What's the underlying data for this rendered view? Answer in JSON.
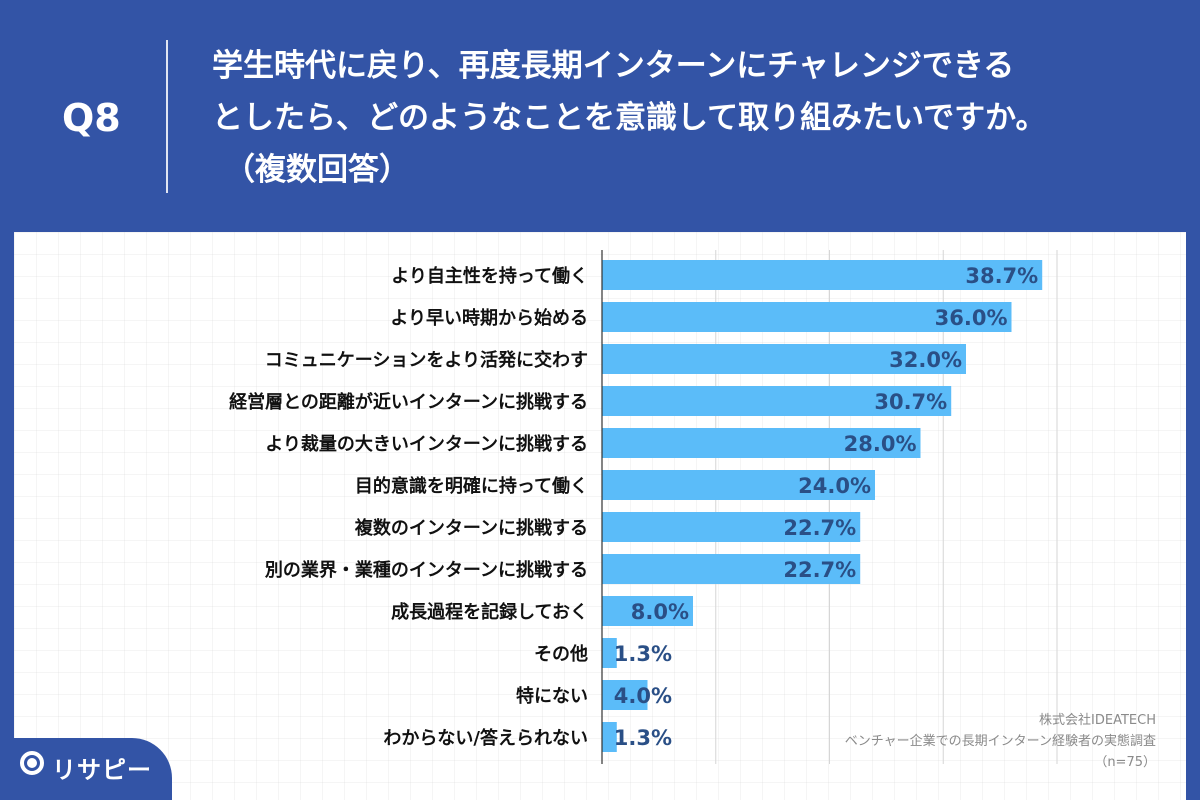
{
  "header": {
    "q_label": "Q8",
    "question_line1": "学生時代に戻り、再度長期インターンにチャレンジできる",
    "question_line2": "としたら、どのようなことを意識して取り組みたいですか。",
    "question_sub": "（複数回答）"
  },
  "source": {
    "company": "株式会社IDEATECH",
    "survey": "ベンチャー企業での長期インターン経験者の実態調査",
    "sample": "（n=75）"
  },
  "logo": {
    "text": "リサピー",
    "icon": "pin-icon"
  },
  "colors": {
    "background": "#3354a6",
    "bar": "#5bbcf9",
    "value_label": "#2a4f86"
  },
  "chart_data": {
    "type": "bar",
    "orientation": "horizontal",
    "unit": "%",
    "categories": [
      "より自主性を持って働く",
      "より早い時期から始める",
      "コミュニケーションをより活発に交わす",
      "経営層との距離が近いインターンに挑戦する",
      "より裁量の大きいインターンに挑戦する",
      "目的意識を明確に持って働く",
      "複数のインターンに挑戦する",
      "別の業界・業種のインターンに挑戦する",
      "成長過程を記録しておく",
      "その他",
      "特にない",
      "わからない/答えられない"
    ],
    "values": [
      38.7,
      36.0,
      32.0,
      30.7,
      28.0,
      24.0,
      22.7,
      22.7,
      8.0,
      1.3,
      4.0,
      1.3
    ],
    "value_labels": [
      "38.7%",
      "36.0%",
      "32.0%",
      "30.7%",
      "28.0%",
      "24.0%",
      "22.7%",
      "22.7%",
      "8.0%",
      "1.3%",
      "4.0%",
      "1.3%"
    ],
    "xlim": [
      0,
      40
    ],
    "grid": "vertical"
  }
}
